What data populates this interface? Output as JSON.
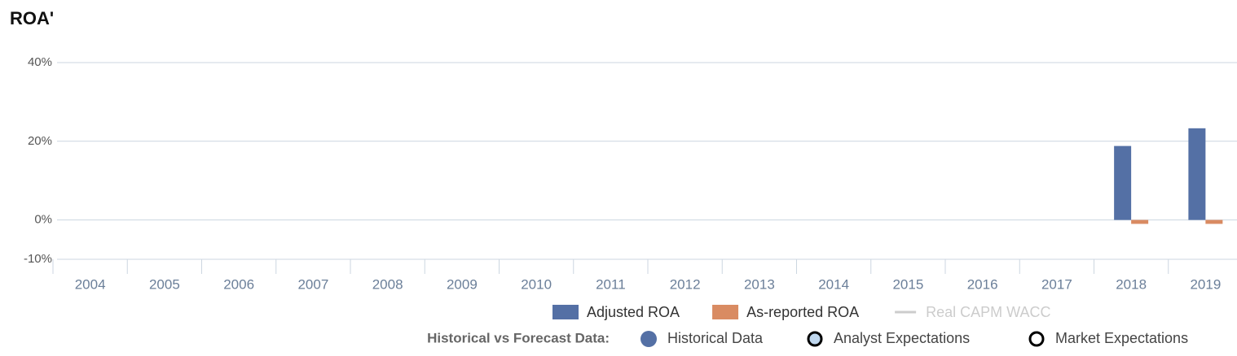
{
  "chart_data": {
    "type": "bar",
    "title": "ROA'",
    "categories": [
      "2004",
      "2005",
      "2006",
      "2007",
      "2008",
      "2009",
      "2010",
      "2011",
      "2012",
      "2013",
      "2014",
      "2015",
      "2016",
      "2017",
      "2018",
      "2019"
    ],
    "series": [
      {
        "name": "Adjusted ROA",
        "color": "#5470a5",
        "values": [
          null,
          null,
          null,
          null,
          null,
          null,
          null,
          null,
          null,
          null,
          null,
          null,
          null,
          null,
          18.8,
          23.3
        ]
      },
      {
        "name": "As-reported ROA",
        "color": "#d98b62",
        "values": [
          null,
          null,
          null,
          null,
          null,
          null,
          null,
          null,
          null,
          null,
          null,
          null,
          null,
          null,
          -1,
          -1
        ]
      },
      {
        "name": "Real CAPM WACC",
        "color": "#cccccc",
        "values": [
          null,
          null,
          null,
          null,
          null,
          null,
          null,
          null,
          null,
          null,
          null,
          null,
          null,
          null,
          null,
          null
        ]
      }
    ],
    "ylim": [
      -10,
      40
    ],
    "yticks": [
      {
        "value": -10,
        "label": "-10%"
      },
      {
        "value": 0,
        "label": "0%"
      },
      {
        "value": 20,
        "label": "20%"
      },
      {
        "value": 40,
        "label": "40%"
      }
    ],
    "grid": true,
    "data_legend": {
      "title": "Historical vs Forecast Data:",
      "items": [
        "Historical Data",
        "Analyst Expectations",
        "Market Expectations"
      ]
    }
  }
}
